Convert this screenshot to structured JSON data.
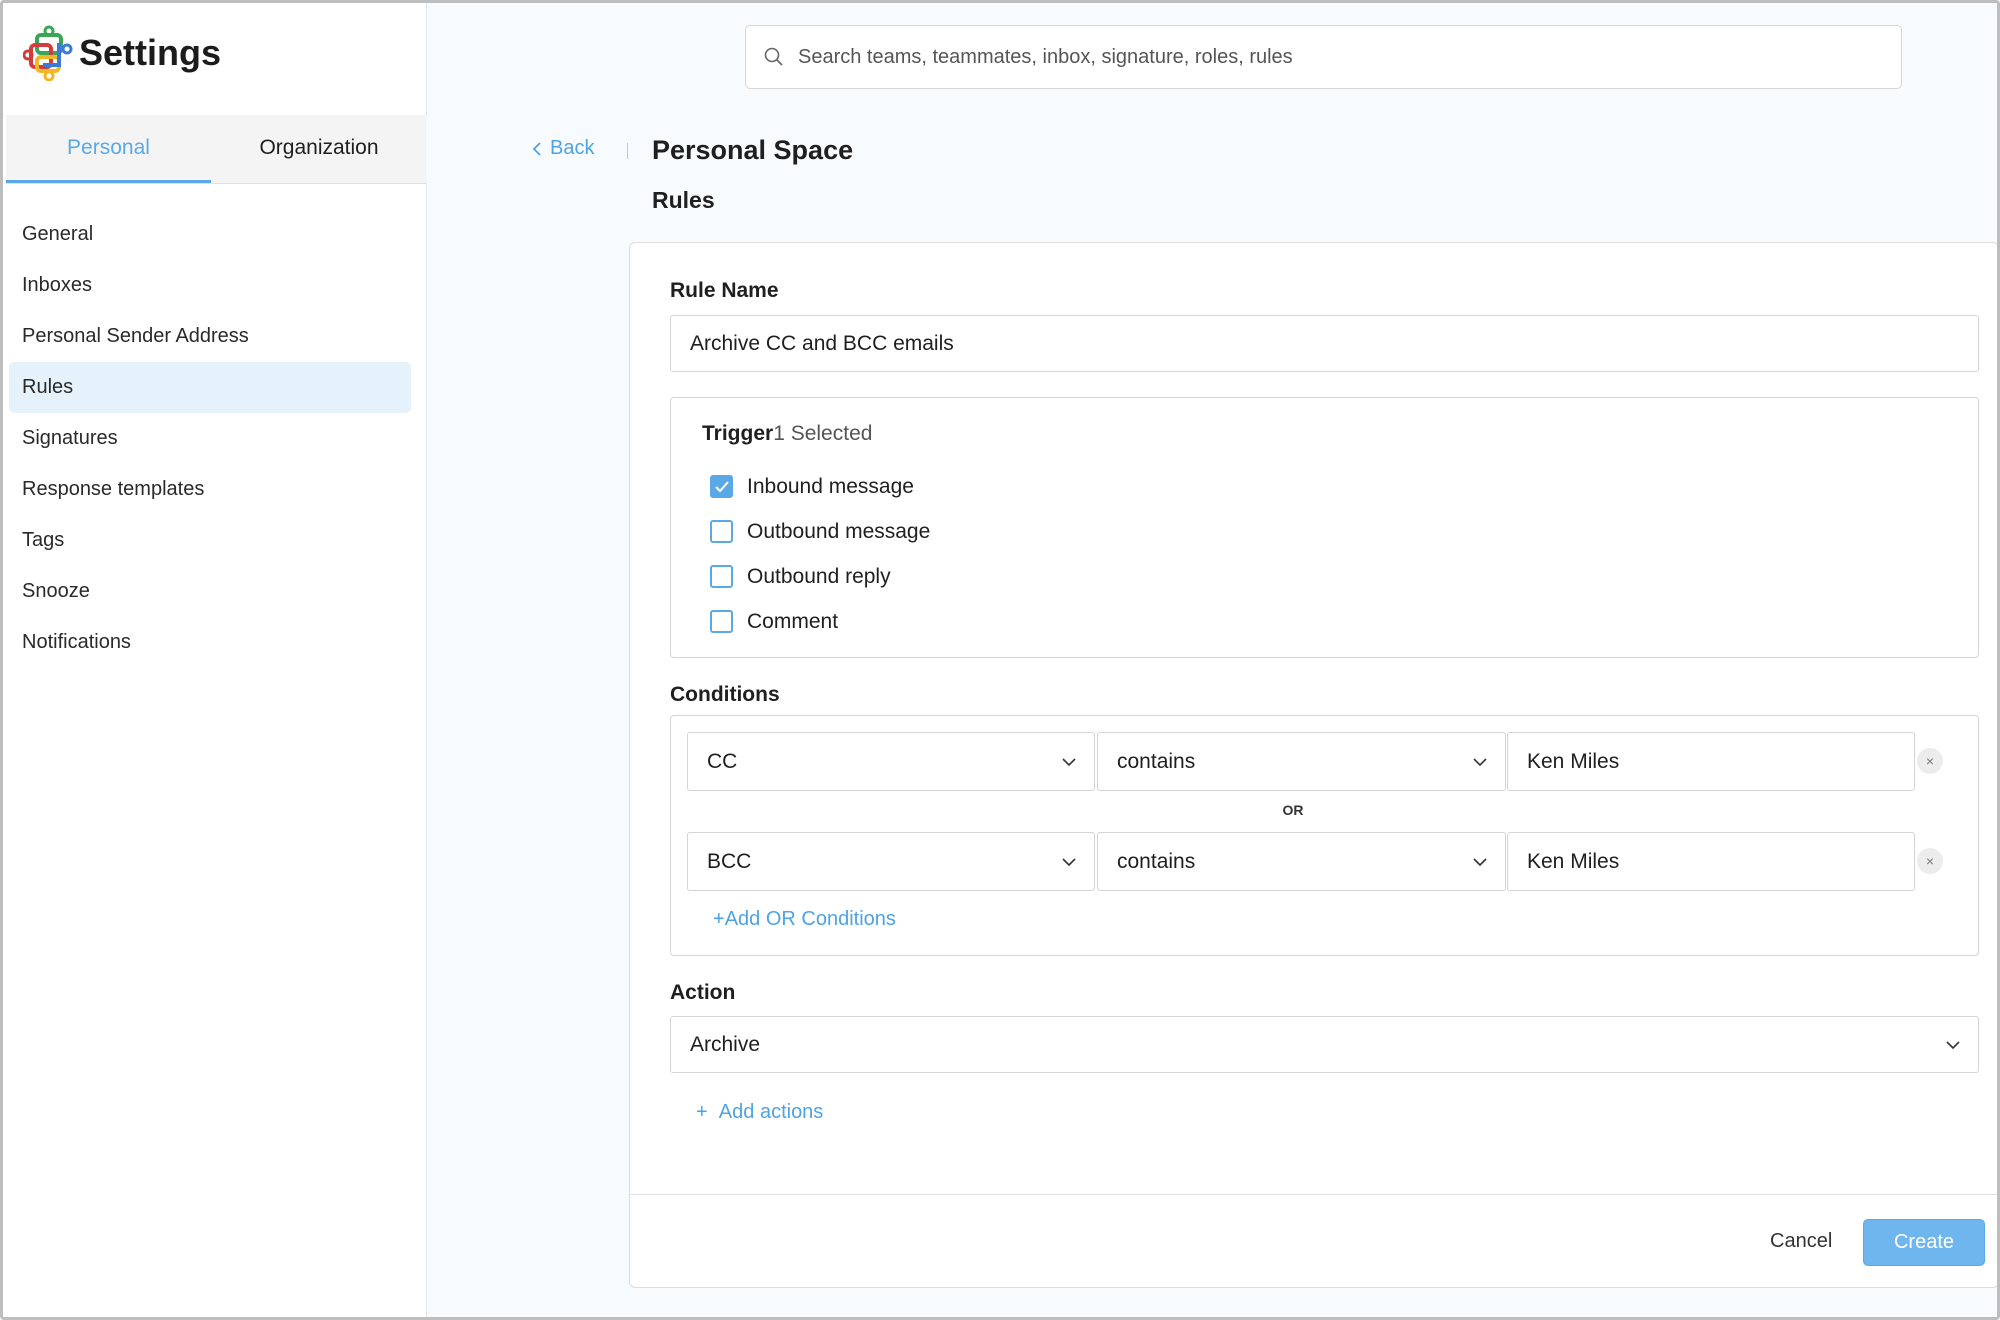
{
  "app": {
    "title": "Settings"
  },
  "sidebar": {
    "tabs": [
      {
        "label": "Personal",
        "active": true
      },
      {
        "label": "Organization",
        "active": false
      }
    ],
    "items": [
      {
        "label": "General"
      },
      {
        "label": "Inboxes"
      },
      {
        "label": "Personal Sender Address"
      },
      {
        "label": "Rules",
        "active": true
      },
      {
        "label": "Signatures"
      },
      {
        "label": "Response templates"
      },
      {
        "label": "Tags"
      },
      {
        "label": "Snooze"
      },
      {
        "label": "Notifications"
      }
    ]
  },
  "search": {
    "placeholder": "Search teams, teammates, inbox, signature, roles, rules",
    "value": ""
  },
  "header": {
    "back_label": "Back",
    "title": "Personal Space",
    "subtitle": "Rules"
  },
  "form": {
    "rule_name_label": "Rule Name",
    "rule_name_value": "Archive CC and BCC emails",
    "trigger_label": "Trigger",
    "trigger_count": "1 Selected",
    "triggers": [
      {
        "label": "Inbound message",
        "checked": true
      },
      {
        "label": "Outbound message",
        "checked": false
      },
      {
        "label": "Outbound reply",
        "checked": false
      },
      {
        "label": "Comment",
        "checked": false
      }
    ],
    "conditions_label": "Conditions",
    "conditions": [
      {
        "field": "CC",
        "operator": "contains",
        "value": "Ken Miles"
      },
      {
        "field": "BCC",
        "operator": "contains",
        "value": "Ken Miles"
      }
    ],
    "or_label": "OR",
    "add_or_label": "Add OR Conditions",
    "action_label": "Action",
    "action_value": "Archive",
    "add_actions_label": "Add actions",
    "cancel_label": "Cancel",
    "create_label": "Create"
  },
  "colors": {
    "accent": "#5aa9e6",
    "create_button": "#6fb6ee",
    "active_nav": "#e6f2fb"
  }
}
